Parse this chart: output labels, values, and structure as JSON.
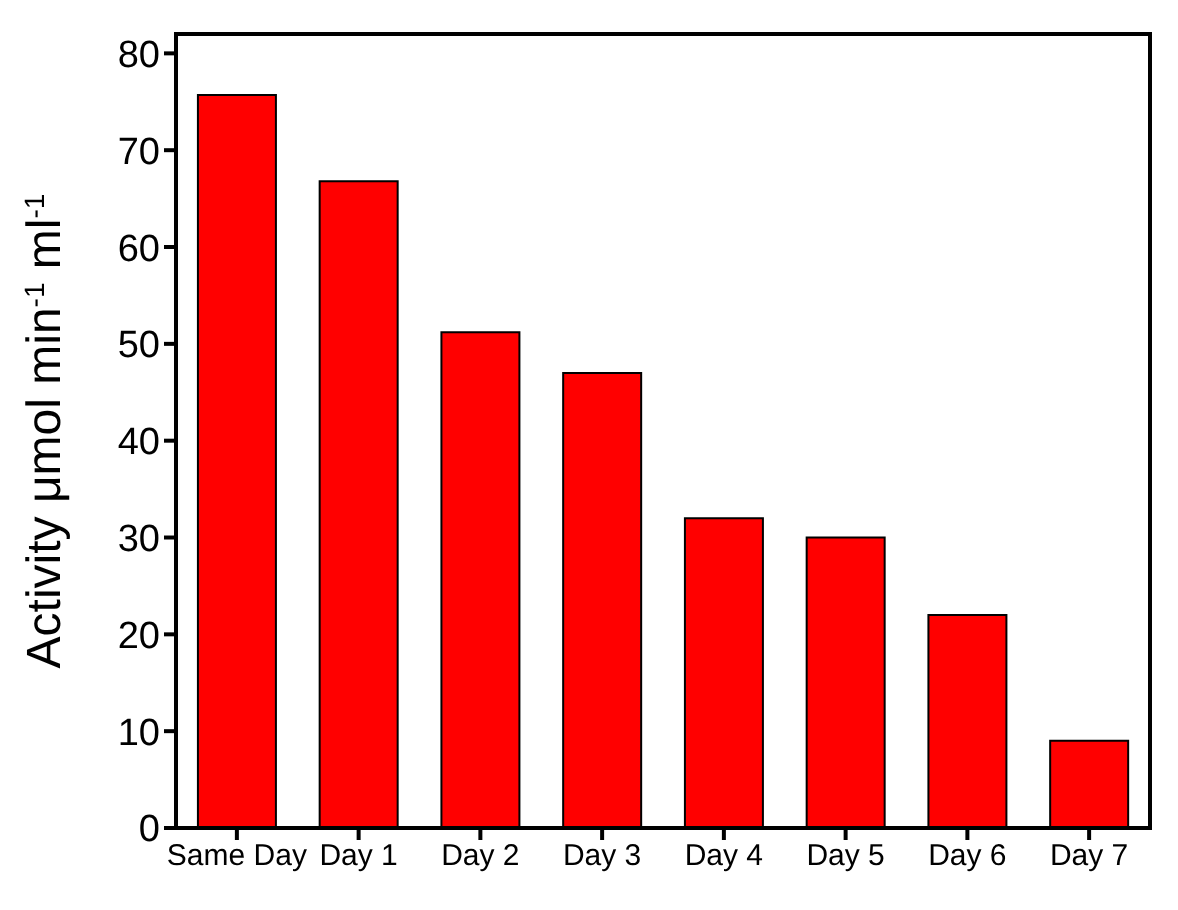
{
  "chart_data": {
    "type": "bar",
    "ylabel": "Activity μmol min$^{-1}$ ml$^{-1}$",
    "categories": [
      "Same Day",
      "Day 1",
      "Day 2",
      "Day 3",
      "Day 4",
      "Day 5",
      "Day 6",
      "Day 7"
    ],
    "values": [
      75.7,
      66.8,
      51.2,
      47,
      32,
      30,
      22,
      9
    ],
    "color": "#ff0000",
    "ylim": [
      0,
      82
    ],
    "yticks": [
      0,
      10,
      20,
      30,
      40,
      50,
      60,
      70,
      80
    ]
  }
}
